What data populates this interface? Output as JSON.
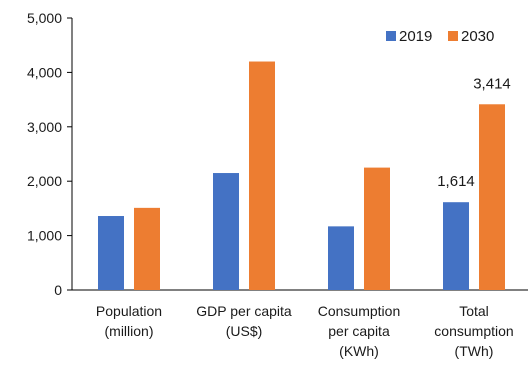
{
  "chart_data": {
    "type": "bar",
    "categories": [
      [
        "Population",
        "(million)"
      ],
      [
        "GDP per capita",
        "(US$)"
      ],
      [
        "Consumption",
        "per capita",
        "(KWh)"
      ],
      [
        "Total",
        "consumption",
        "(TWh)"
      ]
    ],
    "series": [
      {
        "name": "2019",
        "color": "#4472C4",
        "values": [
          1360,
          2150,
          1170,
          1614
        ]
      },
      {
        "name": "2030",
        "color": "#ED7D31",
        "values": [
          1510,
          4200,
          2250,
          3414
        ]
      }
    ],
    "data_labels": [
      {
        "series": 0,
        "category": 3,
        "text": "1,614"
      },
      {
        "series": 1,
        "category": 3,
        "text": "3,414"
      }
    ],
    "ylim": [
      0,
      5000
    ],
    "yticks": [
      0,
      1000,
      2000,
      3000,
      4000,
      5000
    ],
    "ytick_labels": [
      "0",
      "1,000",
      "2,000",
      "3,000",
      "4,000",
      "5,000"
    ],
    "title": "",
    "xlabel": "",
    "ylabel": "",
    "legend_position": "top-right",
    "grid": false
  }
}
